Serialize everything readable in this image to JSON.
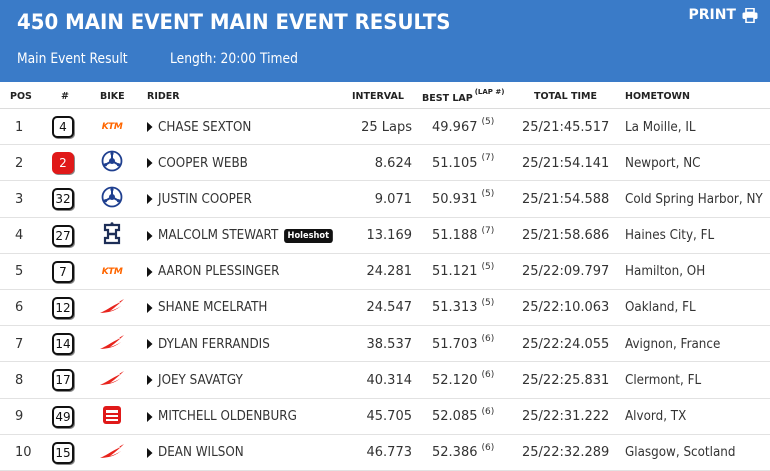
{
  "header": {
    "title": "450 MAIN EVENT MAIN EVENT RESULTS",
    "result_label": "Main Event Result",
    "length_label": "Length: 20:00 Timed",
    "print_label": "PRINT"
  },
  "columns": {
    "pos": "POS",
    "num": "#",
    "bike": "BIKE",
    "rider": "RIDER",
    "interval": "INTERVAL",
    "best_lap": "BEST LAP",
    "lap_num": "(LAP #)",
    "total_time": "TOTAL TIME",
    "hometown": "HOMETOWN"
  },
  "colors": {
    "header_bg": "#3a7bc8",
    "highlight_number": "#e01919",
    "ktm": "#ff6600",
    "honda": "#e8231c",
    "yamaha": "#1f3f8f",
    "husqvarna": "#1d2e57"
  },
  "rows": [
    {
      "pos": "1",
      "num": "4",
      "bike": "ktm",
      "bike_text": "KTM",
      "rider": "CHASE SEXTON",
      "badge": "",
      "interval": "25 Laps",
      "best_lap": "49.967",
      "lap_num": "(5)",
      "total_time": "25/21:45.517",
      "hometown": "La Moille, IL"
    },
    {
      "pos": "2",
      "num": "2",
      "bike": "yamaha",
      "rider": "COOPER WEBB",
      "badge": "",
      "interval": "8.624",
      "best_lap": "51.105",
      "lap_num": "(7)",
      "total_time": "25/21:54.141",
      "hometown": "Newport, NC",
      "highlight": true
    },
    {
      "pos": "3",
      "num": "32",
      "bike": "yamaha",
      "rider": "JUSTIN COOPER",
      "badge": "",
      "interval": "9.071",
      "best_lap": "50.931",
      "lap_num": "(5)",
      "total_time": "25/21:54.588",
      "hometown": "Cold Spring Harbor, NY"
    },
    {
      "pos": "4",
      "num": "27",
      "bike": "husqvarna",
      "rider": "MALCOLM STEWART",
      "badge": "Holeshot",
      "interval": "13.169",
      "best_lap": "51.188",
      "lap_num": "(7)",
      "total_time": "25/21:58.686",
      "hometown": "Haines City, FL"
    },
    {
      "pos": "5",
      "num": "7",
      "bike": "ktm",
      "bike_text": "KTM",
      "rider": "AARON PLESSINGER",
      "badge": "",
      "interval": "24.281",
      "best_lap": "51.121",
      "lap_num": "(5)",
      "total_time": "25/22:09.797",
      "hometown": "Hamilton, OH"
    },
    {
      "pos": "6",
      "num": "12",
      "bike": "honda",
      "rider": "SHANE MCELRATH",
      "badge": "",
      "interval": "24.547",
      "best_lap": "51.313",
      "lap_num": "(5)",
      "total_time": "25/22:10.063",
      "hometown": "Oakland, FL"
    },
    {
      "pos": "7",
      "num": "14",
      "bike": "honda",
      "rider": "DYLAN FERRANDIS",
      "badge": "",
      "interval": "38.537",
      "best_lap": "51.703",
      "lap_num": "(6)",
      "total_time": "25/22:24.055",
      "hometown": "Avignon, France"
    },
    {
      "pos": "8",
      "num": "17",
      "bike": "honda",
      "rider": "JOEY SAVATGY",
      "badge": "",
      "interval": "40.314",
      "best_lap": "52.120",
      "lap_num": "(6)",
      "total_time": "25/22:25.831",
      "hometown": "Clermont, FL"
    },
    {
      "pos": "9",
      "num": "49",
      "bike": "beta",
      "rider": "MITCHELL OLDENBURG",
      "badge": "",
      "interval": "45.705",
      "best_lap": "52.085",
      "lap_num": "(6)",
      "total_time": "25/22:31.222",
      "hometown": "Alvord, TX"
    },
    {
      "pos": "10",
      "num": "15",
      "bike": "honda",
      "rider": "DEAN WILSON",
      "badge": "",
      "interval": "46.773",
      "best_lap": "52.386",
      "lap_num": "(6)",
      "total_time": "25/22:32.289",
      "hometown": "Glasgow, Scotland"
    }
  ]
}
